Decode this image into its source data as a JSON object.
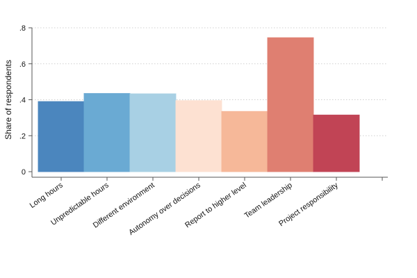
{
  "chart_data": {
    "type": "bar",
    "categories": [
      "Long hours",
      "Unpredictable hours",
      "Different environment",
      "Autonomy over decisions",
      "Report to higher level",
      "Team leadership",
      "Project responsibility"
    ],
    "values": [
      0.39,
      0.435,
      0.433,
      0.395,
      0.335,
      0.745,
      0.315
    ],
    "colors": [
      "#4b86be",
      "#6aaad3",
      "#a8d0e4",
      "#fde1d2",
      "#f6b899",
      "#df7f71",
      "#c14455"
    ],
    "ylabel": "Share of respondents",
    "ylim": [
      0,
      0.8
    ],
    "yticks": [
      0,
      0.2,
      0.4,
      0.6,
      0.8
    ],
    "ytick_labels": [
      "0",
      ".2",
      ".4",
      ".6",
      ".8"
    ],
    "grid": true,
    "legend": "none"
  }
}
